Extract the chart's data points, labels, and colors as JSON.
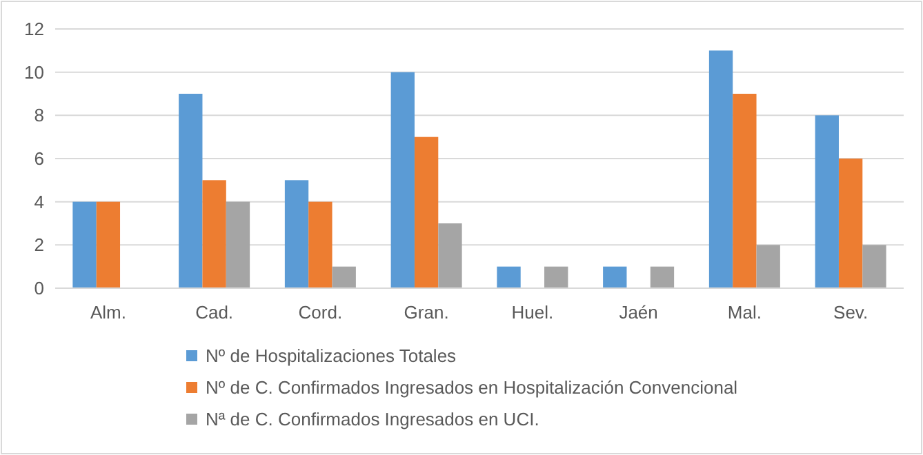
{
  "chart_data": {
    "type": "bar",
    "categories": [
      "Alm.",
      "Cad.",
      "Cord.",
      "Gran.",
      "Huel.",
      "Jaén",
      "Mal.",
      "Sev."
    ],
    "series": [
      {
        "name": "Nº de Hospitalizaciones Totales",
        "color": "#5b9bd5",
        "values": [
          4,
          9,
          5,
          10,
          1,
          1,
          11,
          8
        ]
      },
      {
        "name": "Nº de C. Confirmados Ingresados en Hospitalización Convencional",
        "color": "#ed7d31",
        "values": [
          4,
          5,
          4,
          7,
          0,
          0,
          9,
          6
        ]
      },
      {
        "name": "Nª de C. Confirmados Ingresados en UCI.",
        "color": "#a5a5a5",
        "values": [
          0,
          4,
          1,
          3,
          1,
          1,
          2,
          2
        ]
      }
    ],
    "ylim": [
      0,
      12
    ],
    "yticks": [
      0,
      2,
      4,
      6,
      8,
      10,
      12
    ],
    "grid": "y",
    "legend": "bottom"
  }
}
